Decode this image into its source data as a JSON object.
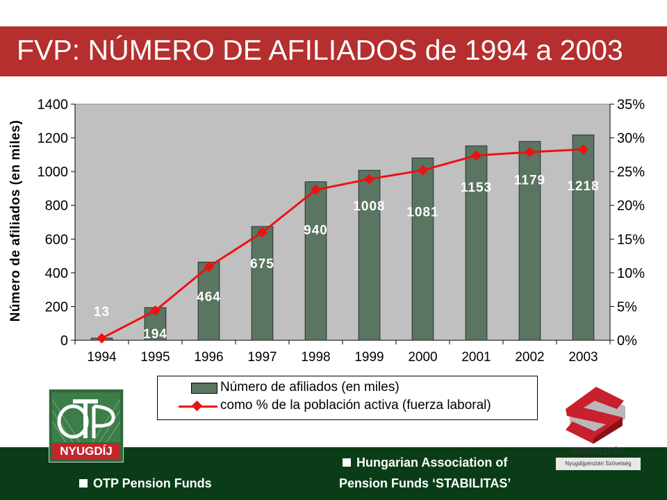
{
  "slide": {
    "title": "FVP: NÚMERO DE AFILIADOS de 1994 a 2003"
  },
  "colors": {
    "title_bar": "#b52f2f",
    "bar": "#5a7562",
    "line": "#ee1111",
    "plot_bg": "#c0c0c0",
    "footer": "#0a3d17"
  },
  "chart_data": {
    "type": "bar",
    "categories": [
      "1994",
      "1995",
      "1996",
      "1997",
      "1998",
      "1999",
      "2000",
      "2001",
      "2002",
      "2003"
    ],
    "series": [
      {
        "name": "Número de afiliados (en miles)",
        "type": "bar",
        "axis": "left",
        "values": [
          13,
          194,
          464,
          675,
          940,
          1008,
          1081,
          1153,
          1179,
          1218
        ]
      },
      {
        "name": "como % de la población activa (fuerza laboral)",
        "type": "line",
        "axis": "right",
        "values": [
          0.3,
          4.4,
          10.9,
          16.0,
          22.3,
          23.9,
          25.2,
          27.4,
          27.9,
          28.3
        ]
      }
    ],
    "data_labels": [
      "13",
      "194",
      "464",
      "675",
      "940",
      "1008",
      "1081",
      "1153",
      "1179",
      "1218"
    ],
    "ylabel": "Número de afiliados (en miles)",
    "ylim": [
      0,
      1400
    ],
    "y_ticks": [
      "0",
      "200",
      "400",
      "600",
      "800",
      "1000",
      "1200",
      "1400"
    ],
    "y2lim": [
      0,
      35
    ],
    "y2_ticks": [
      "0%",
      "5%",
      "10%",
      "15%",
      "20%",
      "25%",
      "30%",
      "35%"
    ],
    "grid": false,
    "legend_position": "bottom"
  },
  "footer": {
    "left_text": "OTP Pension Funds",
    "right_line1": "Hungarian Association of",
    "right_line2": "Pension Funds ‘STABILITAS’"
  },
  "logos": {
    "otp_word": "NYUGDÍJ",
    "stabilitas_name": "STABILITÁS",
    "stabilitas_sub": "Nyugdíjpénztári Szövetség"
  }
}
